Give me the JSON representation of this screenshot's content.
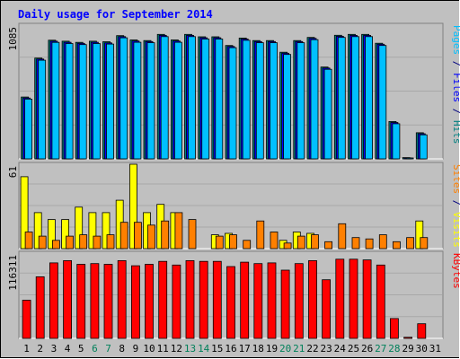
{
  "chart_data": {
    "type": "bar",
    "title": "Daily usage for September 2014",
    "categories": [
      "1",
      "2",
      "3",
      "4",
      "5",
      "6",
      "7",
      "8",
      "9",
      "10",
      "11",
      "12",
      "13",
      "14",
      "15",
      "16",
      "17",
      "18",
      "19",
      "20",
      "21",
      "22",
      "23",
      "24",
      "25",
      "26",
      "27",
      "28",
      "29",
      "30",
      "31"
    ],
    "weekend_days": [
      "6",
      "7",
      "13",
      "14",
      "20",
      "21",
      "27",
      "28"
    ],
    "panels": [
      {
        "name": "hits-files-pages",
        "ymax_label": "1085",
        "ymax": 1085,
        "right_label": [
          {
            "text": "Pages",
            "color": "#00c0ff"
          },
          {
            "text": " / ",
            "color": "#000080"
          },
          {
            "text": "Files",
            "color": "#0000ff"
          },
          {
            "text": " / ",
            "color": "#000080"
          },
          {
            "text": "Hits",
            "color": "#008080"
          }
        ],
        "series": [
          {
            "name": "Hits",
            "color": "#008080",
            "values": [
              502,
              818,
              963,
              955,
              945,
              955,
              950,
              1000,
              965,
              960,
              1010,
              965,
              1010,
              990,
              990,
              920,
              980,
              960,
              960,
              865,
              960,
              985,
              745,
              1003,
              1010,
              1010,
              938,
              303,
              10,
              212,
              null
            ]
          },
          {
            "name": "Files",
            "color": "#0000ff",
            "values": [
              494,
              810,
              955,
              946,
              937,
              946,
              941,
              992,
              956,
              952,
              1002,
              956,
              1002,
              982,
              982,
              912,
              972,
              952,
              952,
              857,
              952,
              977,
              737,
              995,
              1002,
              1002,
              930,
              295,
              8,
              204,
              null
            ]
          },
          {
            "name": "Pages",
            "color": "#00c0ff",
            "values": [
              485,
              800,
              945,
              936,
              927,
              936,
              931,
              982,
              946,
              942,
              992,
              946,
              992,
              972,
              972,
              902,
              962,
              942,
              942,
              847,
              942,
              967,
              727,
              985,
              992,
              992,
              920,
              285,
              5,
              195,
              null
            ]
          }
        ]
      },
      {
        "name": "visits-sites",
        "ymax_label": "61",
        "ymax": 61,
        "right_label": [
          {
            "text": "Sites",
            "color": "#ff8000"
          },
          {
            "text": " / ",
            "color": "#000080"
          },
          {
            "text": "Visits",
            "color": "#ffff00"
          }
        ],
        "series": [
          {
            "name": "Visits",
            "color": "#ffff00",
            "values": [
              52,
              26,
              21,
              21,
              30,
              26,
              26,
              35,
              61,
              26,
              32,
              26,
              null,
              null,
              10,
              11,
              null,
              null,
              null,
              6,
              12,
              11,
              null,
              null,
              null,
              null,
              null,
              null,
              null,
              20,
              null
            ]
          },
          {
            "name": "Sites",
            "color": "#ff8000",
            "values": [
              12,
              9,
              6,
              9,
              10,
              9,
              10,
              19,
              19,
              17,
              20,
              26,
              21,
              null,
              9,
              10,
              6,
              20,
              12,
              4,
              9,
              10,
              5,
              18,
              8,
              7,
              10,
              5,
              8,
              8,
              null
            ]
          }
        ]
      },
      {
        "name": "kbytes",
        "ymax_label": "116311",
        "ymax": 116311,
        "right_label": [
          {
            "text": "KBytes",
            "color": "#ff0000"
          }
        ],
        "series": [
          {
            "name": "KBytes",
            "color": "#ff0000",
            "values": [
              52000,
              84000,
              103000,
              106000,
              101000,
              102000,
              101000,
              106000,
              99000,
              101000,
              105000,
              100000,
              106000,
              105000,
              105000,
              98000,
              104000,
              102000,
              103000,
              93000,
              102000,
              106000,
              80000,
              108000,
              108000,
              107000,
              100000,
              27000,
              1500,
              20000,
              null
            ]
          }
        ]
      }
    ]
  }
}
